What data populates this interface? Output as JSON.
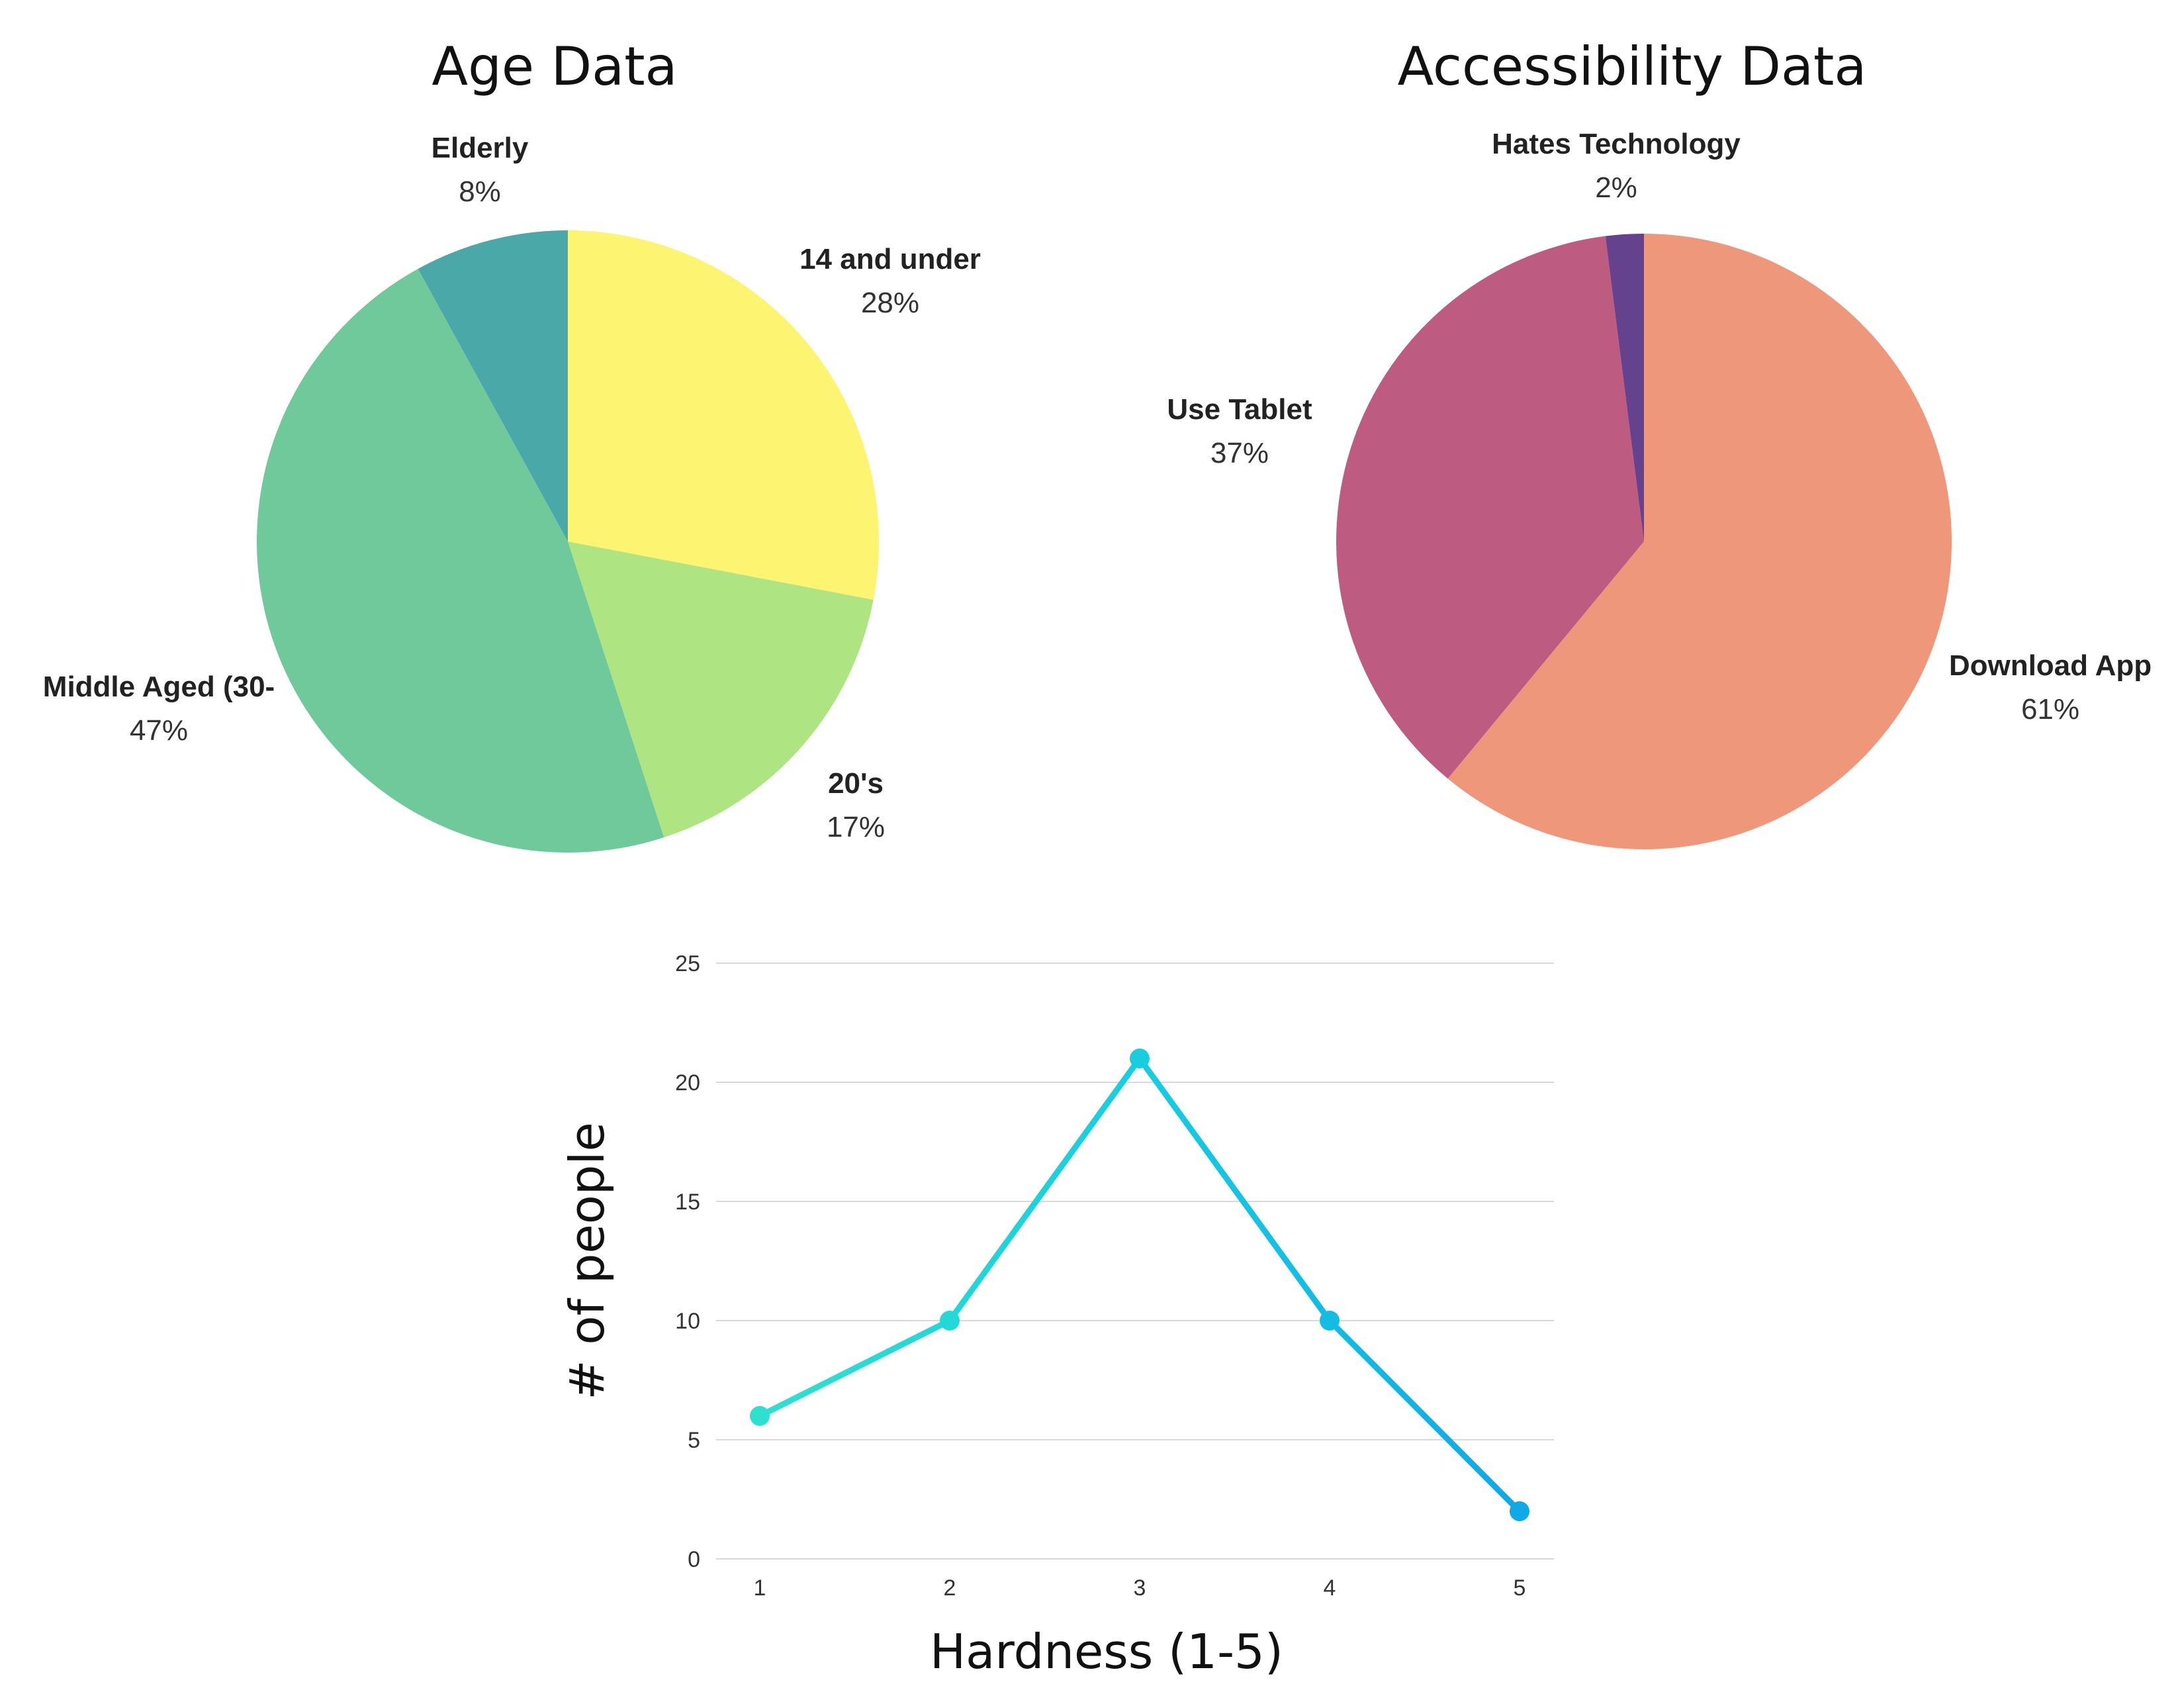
{
  "chart_data": [
    {
      "type": "pie",
      "title": "Age Data",
      "slices": [
        {
          "label": "14 and under",
          "value": 28,
          "pct_label": "28%",
          "color": "#fdf472"
        },
        {
          "label": "20's",
          "value": 17,
          "pct_label": "17%",
          "color": "#aee582"
        },
        {
          "label": "Middle Aged (30-",
          "value": 47,
          "pct_label": "47%",
          "color": "#70c99a"
        },
        {
          "label": "Elderly",
          "value": 8,
          "pct_label": "8%",
          "color": "#4ba8a8"
        }
      ],
      "start": "12 o'clock",
      "direction": "clockwise"
    },
    {
      "type": "pie",
      "title": "Accessibility Data",
      "slices": [
        {
          "label": "Download App",
          "value": 61,
          "pct_label": "61%",
          "color": "#ee977a"
        },
        {
          "label": "Use Tablet",
          "value": 37,
          "pct_label": "37%",
          "color": "#bd5c80"
        },
        {
          "label": "Hates Technology",
          "value": 2,
          "pct_label": "2%",
          "color": "#64428e"
        }
      ],
      "start": "12 o'clock",
      "direction": "clockwise"
    },
    {
      "type": "line",
      "title": "",
      "xlabel": "Hardness (1-5)",
      "ylabel": "# of people",
      "x": [
        1,
        2,
        3,
        4,
        5
      ],
      "y": [
        6,
        10,
        21,
        10,
        2
      ],
      "ylim": [
        0,
        25
      ],
      "yticks": [
        0,
        5,
        10,
        15,
        20,
        25
      ],
      "grid": true,
      "colors": {
        "start": "#2fe0d0",
        "mid": "#18cde0",
        "end": "#10a8e6"
      }
    }
  ]
}
